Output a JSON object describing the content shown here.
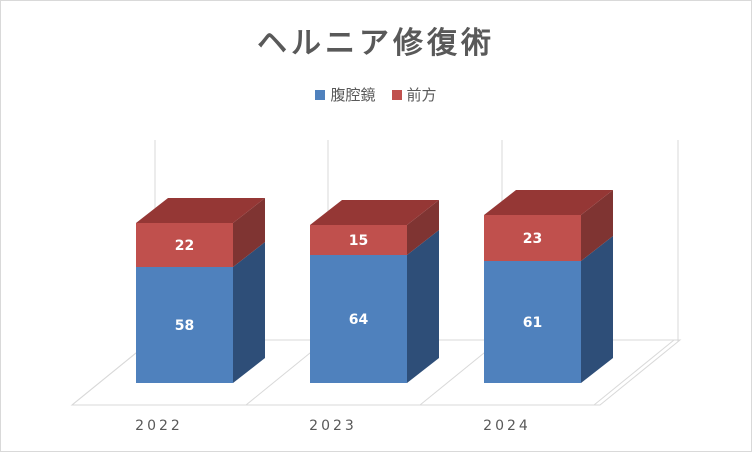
{
  "chart_data": {
    "type": "bar",
    "title": "ヘルニア修復術",
    "categories": [
      "2022",
      "2023",
      "2024"
    ],
    "series": [
      {
        "name": "腹腔鏡",
        "values": [
          58,
          64,
          61
        ],
        "color": "#4f81bd",
        "side_color": "#2e4e78"
      },
      {
        "name": "前方",
        "values": [
          22,
          15,
          23
        ],
        "color": "#c0504d",
        "side_color": "#7f3432",
        "top_color": "#953735"
      }
    ],
    "stacked": true,
    "three_d": true,
    "legend_position": "top",
    "ylim": [
      0,
      100
    ],
    "grid": false
  }
}
